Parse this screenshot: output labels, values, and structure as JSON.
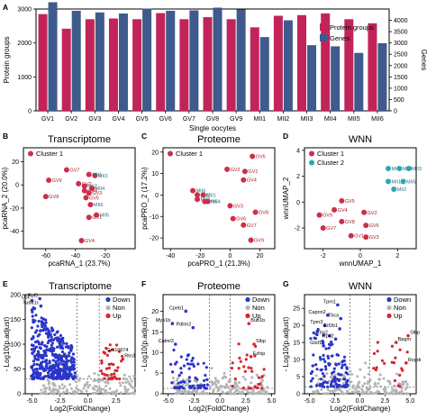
{
  "colors": {
    "protein": "#c2245a",
    "genes": "#3f5a8c",
    "cluster1": "#cc2f4a",
    "cluster2": "#2aa8b3",
    "down": "#2a35c9",
    "non": "#b4b4b4",
    "up": "#d8262e",
    "scatter_label_teal": "#2e6e7a",
    "scatter_label_red": "#a0202d"
  },
  "chart_data": [
    {
      "panel": "A",
      "type": "bar",
      "categories": [
        "GV1",
        "GV2",
        "GV3",
        "GV4",
        "GV5",
        "GV6",
        "GV7",
        "GV8",
        "GV9",
        "MII1",
        "MII2",
        "MII3",
        "MII4",
        "MII5",
        "MII6"
      ],
      "xlabel": "Single oocytes",
      "series": [
        {
          "name": "Protein groups",
          "axis": "left",
          "values": [
            2850,
            2420,
            2700,
            2720,
            2700,
            2880,
            2700,
            2760,
            2700,
            2460,
            2800,
            2820,
            2870,
            2700,
            2580
          ]
        },
        {
          "name": "Genes",
          "axis": "right",
          "values": [
            4800,
            4420,
            4350,
            4300,
            4520,
            4420,
            4440,
            4560,
            4480,
            3260,
            4000,
            2900,
            2850,
            2560,
            2990
          ]
        }
      ],
      "ylabel_left": "Protein groups",
      "ylabel_right": "Genes",
      "ylim": [
        0,
        3000
      ],
      "yticks_left": [
        0,
        1000,
        2000,
        3000
      ],
      "yticks_right": [
        0,
        500,
        1000,
        1500,
        2000,
        2500,
        3000,
        3500,
        4000
      ],
      "legend_position": "top-right"
    },
    {
      "panel": "B",
      "type": "scatter",
      "title": "Transcriptome",
      "xlabel": "pcaRNA_1 (23.7%)",
      "ylabel": "pcaRNA_2 (20.0%)",
      "xlim": [
        -75,
        0
      ],
      "ylim": [
        -55,
        32
      ],
      "xticks": [
        -60,
        -40,
        -20
      ],
      "yticks": [
        -40,
        -20,
        0,
        20
      ],
      "legend": [
        "Cluster 1"
      ],
      "points": [
        {
          "label": "GV7",
          "x": -46,
          "y": 13
        },
        {
          "label": "MII3",
          "x": -27,
          "y": 8
        },
        {
          "label": "MII1",
          "x": -31,
          "y": 9
        },
        {
          "label": "GV9",
          "x": -58,
          "y": 4
        },
        {
          "label": "GV2",
          "x": -38,
          "y": 1
        },
        {
          "label": "MII2",
          "x": -34,
          "y": -1
        },
        {
          "label": "MII4",
          "x": -29,
          "y": -3
        },
        {
          "label": "GV6",
          "x": -34,
          "y": -5
        },
        {
          "label": "GV3",
          "x": -31,
          "y": -7
        },
        {
          "label": "GV8",
          "x": -60,
          "y": -10
        },
        {
          "label": "GV5",
          "x": -33,
          "y": -11
        },
        {
          "label": "MII6",
          "x": -30,
          "y": -17
        },
        {
          "label": "GV1",
          "x": -31,
          "y": -28
        },
        {
          "label": "MII5",
          "x": -26,
          "y": -26
        },
        {
          "label": "GV4",
          "x": -36,
          "y": -48
        }
      ]
    },
    {
      "panel": "C",
      "type": "scatter",
      "title": "Proteome",
      "xlabel": "pcaPRO_1 (21.3%)",
      "ylabel": "pcaPRO_2 (17.2%)",
      "xlim": [
        -45,
        30
      ],
      "ylim": [
        -25,
        22
      ],
      "xticks": [
        -40,
        -20,
        0,
        20
      ],
      "yticks": [
        -20,
        -10,
        0,
        10,
        20
      ],
      "legend": [
        "Cluster 1"
      ],
      "points": [
        {
          "label": "GV5",
          "x": 15,
          "y": 18
        },
        {
          "label": "GV2",
          "x": -2,
          "y": 12
        },
        {
          "label": "GV1",
          "x": 10,
          "y": 11
        },
        {
          "label": "GV4",
          "x": 9,
          "y": 7
        },
        {
          "label": "MII6",
          "x": -25,
          "y": 2
        },
        {
          "label": "MII2",
          "x": -22,
          "y": 0
        },
        {
          "label": "MII1",
          "x": -18,
          "y": 0
        },
        {
          "label": "MII3",
          "x": -22,
          "y": -2
        },
        {
          "label": "MII5",
          "x": -17,
          "y": -3
        },
        {
          "label": "MII4",
          "x": -15,
          "y": -3
        },
        {
          "label": "GV3",
          "x": 0,
          "y": -5
        },
        {
          "label": "GV8",
          "x": 17,
          "y": -8
        },
        {
          "label": "GV6",
          "x": 2,
          "y": -11
        },
        {
          "label": "GV7",
          "x": 9,
          "y": -14
        },
        {
          "label": "GV9",
          "x": 14,
          "y": -21
        }
      ]
    },
    {
      "panel": "D",
      "type": "scatter",
      "title": "WNN",
      "xlabel": "wnnUMAP_1",
      "ylabel": "wnnUMAP_2",
      "xlim": [
        -3,
        3
      ],
      "ylim": [
        -3.6,
        4.2
      ],
      "xticks": [
        -2,
        0,
        2
      ],
      "yticks": [
        -2,
        0,
        2,
        4
      ],
      "legend": [
        "Cluster 1",
        "Cluster 2"
      ],
      "points": [
        {
          "label": "MII6",
          "x": 1.5,
          "y": 2.6,
          "cluster": 2
        },
        {
          "label": "MII4",
          "x": 2.1,
          "y": 2.6,
          "cluster": 2
        },
        {
          "label": "MII3",
          "x": 2.6,
          "y": 2.6,
          "cluster": 2
        },
        {
          "label": "MII1",
          "x": 1.5,
          "y": 1.6,
          "cluster": 2
        },
        {
          "label": "MII5",
          "x": 2.3,
          "y": 1.6,
          "cluster": 2
        },
        {
          "label": "MII2",
          "x": 1.8,
          "y": 1.0,
          "cluster": 2
        },
        {
          "label": "GV5",
          "x": -1.0,
          "y": 0.1,
          "cluster": 1
        },
        {
          "label": "GV4",
          "x": -1.4,
          "y": -0.6,
          "cluster": 1
        },
        {
          "label": "GV9",
          "x": -2.2,
          "y": -1.0,
          "cluster": 1
        },
        {
          "label": "GV2",
          "x": 0.2,
          "y": -0.8,
          "cluster": 1
        },
        {
          "label": "GV8",
          "x": -1.0,
          "y": -1.5,
          "cluster": 1
        },
        {
          "label": "GV6",
          "x": 0.3,
          "y": -1.8,
          "cluster": 1
        },
        {
          "label": "GV7",
          "x": -2.0,
          "y": -2.0,
          "cluster": 1
        },
        {
          "label": "GV1",
          "x": -0.5,
          "y": -2.6,
          "cluster": 1
        },
        {
          "label": "GV3",
          "x": 0.3,
          "y": -2.7,
          "cluster": 1
        }
      ]
    },
    {
      "panel": "E",
      "type": "scatter",
      "subtype": "volcano",
      "title": "Transcriptome",
      "xlabel": "Log2(FoldChange)",
      "ylabel": "- Log10(p.adjust)",
      "xlim": [
        -5.6,
        4.2
      ],
      "ylim": [
        0,
        200
      ],
      "xticks": [
        -5.0,
        -2.5,
        0.0,
        2.5
      ],
      "yticks": [
        0,
        50,
        100,
        150,
        200
      ],
      "legend": [
        "Down",
        "Non",
        "Up"
      ],
      "thresholds": {
        "fc": 1,
        "p": 30
      },
      "labeled_genes": [
        {
          "gene": "Ubc",
          "x": -5.0,
          "y": 188
        },
        {
          "gene": "Rpl5",
          "x": -4.3,
          "y": 192
        },
        {
          "gene": "Tuba1c",
          "x": -4.2,
          "y": 177
        },
        {
          "gene": "Gm10674",
          "x": 1.5,
          "y": 82
        },
        {
          "gene": "Rtn3",
          "x": 3.1,
          "y": 70
        }
      ]
    },
    {
      "panel": "F",
      "type": "scatter",
      "subtype": "volcano",
      "title": "Proteome",
      "xlabel": "Log2(FoldChange)",
      "ylabel": "- Log10(p.adjust)",
      "xlim": [
        -5.5,
        5.3
      ],
      "ylim": [
        0,
        24
      ],
      "xticks": [
        -5.0,
        -2.5,
        0.0,
        2.5,
        5.0
      ],
      "yticks": [
        0,
        5,
        10,
        15,
        20
      ],
      "legend": [
        "Down",
        "Non",
        "Up"
      ],
      "thresholds": {
        "fc": 1,
        "p": 1.3
      },
      "labeled_genes": [
        {
          "gene": "Cpeb1",
          "x": -3.3,
          "y": 20
        },
        {
          "gene": "Myo1b",
          "x": -4.6,
          "y": 17
        },
        {
          "gene": "Pdlim2",
          "x": -2.6,
          "y": 16
        },
        {
          "gene": "Calml3",
          "x": -4.3,
          "y": 12
        },
        {
          "gene": "Bub1b",
          "x": 2.8,
          "y": 17
        },
        {
          "gene": "Slbp",
          "x": 3.3,
          "y": 12
        },
        {
          "gene": "Ezhip",
          "x": 3.0,
          "y": 9
        }
      ]
    },
    {
      "panel": "G",
      "type": "scatter",
      "subtype": "volcano",
      "title": "WNN",
      "xlabel": "Log2(FoldChange)",
      "ylabel": "- Log10(p.adjust)",
      "xlim": [
        -5.5,
        5.6
      ],
      "ylim": [
        0,
        29
      ],
      "xticks": [
        -5.0,
        -2.5,
        0.0,
        2.5,
        5.0
      ],
      "yticks": [
        0,
        5,
        10,
        15,
        20,
        25
      ],
      "legend": [
        "Down",
        "Non",
        "Up"
      ],
      "thresholds": {
        "fc": 1,
        "p": 2
      },
      "labeled_genes": [
        {
          "gene": "Tpm1",
          "x": -2.2,
          "y": 26
        },
        {
          "gene": "Caprin2",
          "x": -3.2,
          "y": 23
        },
        {
          "gene": "Tbca",
          "x": -1.9,
          "y": 22
        },
        {
          "gene": "Tpm3",
          "x": -3.5,
          "y": 20
        },
        {
          "gene": "Eif2b1",
          "x": -2.0,
          "y": 19
        },
        {
          "gene": "Ybx2",
          "x": -3.0,
          "y": 17
        },
        {
          "gene": "Rps2",
          "x": -2.4,
          "y": 16
        },
        {
          "gene": "Gtsf1",
          "x": -3.6,
          "y": 14
        },
        {
          "gene": "Bpgm",
          "x": 3.6,
          "y": 15
        },
        {
          "gene": "Slbp",
          "x": 4.8,
          "y": 17
        },
        {
          "gene": "Rogdi",
          "x": 4.6,
          "y": 9
        }
      ]
    }
  ]
}
